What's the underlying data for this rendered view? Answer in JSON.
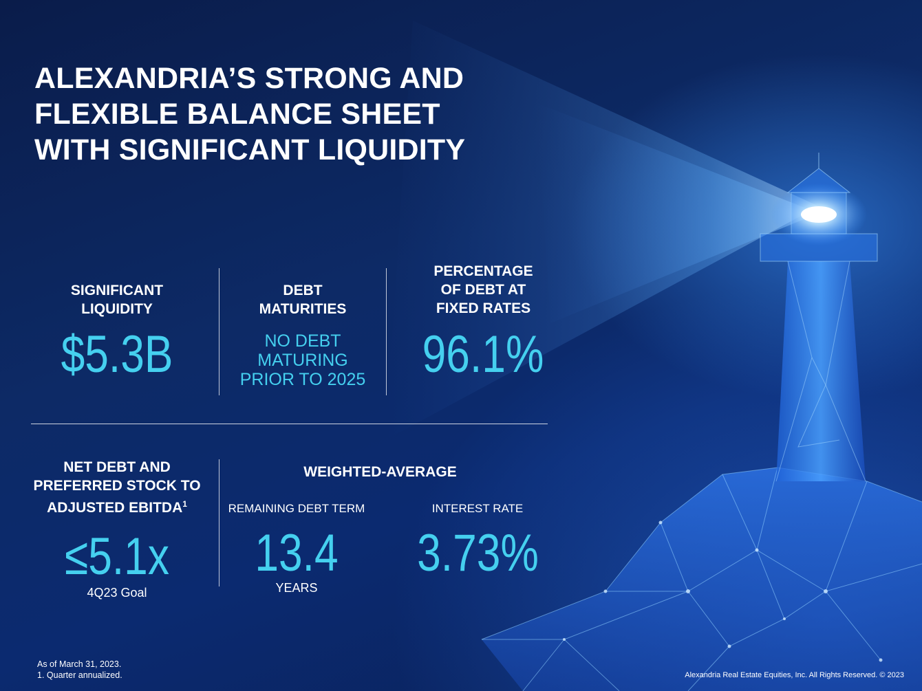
{
  "slide": {
    "title_lines": [
      "ALEXANDRIA’S STRONG AND",
      "FLEXIBLE BALANCE SHEET",
      "WITH SIGNIFICANT LIQUIDITY"
    ]
  },
  "metrics": {
    "liquidity": {
      "label_lines": [
        "SIGNIFICANT",
        "LIQUIDITY"
      ],
      "value": "$5.3B"
    },
    "debt_maturities": {
      "label_lines": [
        "DEBT",
        "MATURITIES"
      ],
      "value_lines": [
        "NO DEBT",
        "MATURING",
        "PRIOR TO 2025"
      ]
    },
    "fixed_rate": {
      "label_lines": [
        "PERCENTAGE",
        "OF DEBT AT",
        "FIXED RATES"
      ],
      "value": "96.1%"
    },
    "net_debt": {
      "label_lines": [
        "NET DEBT AND",
        "PREFERRED STOCK TO",
        "ADJUSTED EBITDA"
      ],
      "superscript": "1",
      "value": "≤5.1x",
      "caption": "4Q23 Goal"
    },
    "weighted_average": {
      "heading": "WEIGHTED-AVERAGE",
      "remaining_term": {
        "label": "REMAINING DEBT TERM",
        "value": "13.4",
        "unit": "YEARS"
      },
      "interest_rate": {
        "label": "INTEREST RATE",
        "value": "3.73%"
      }
    }
  },
  "footer": {
    "notes": [
      "As of March 31, 2023.",
      "1.  Quarter annualized."
    ],
    "copyright": "Alexandria Real Estate Equities, Inc. All Rights Reserved. © 2023"
  },
  "colors": {
    "accent": "#45d0ef",
    "background": "#0b2a70"
  }
}
